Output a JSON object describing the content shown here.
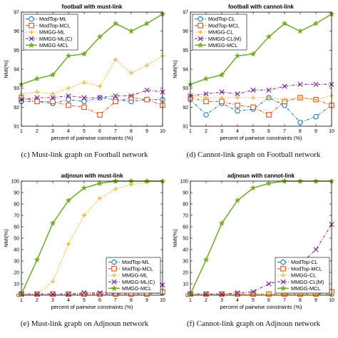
{
  "chart_data": [
    {
      "type": "line",
      "panel_label": "(c)",
      "caption": "Must-link graph on Football network",
      "title": "football with must-link",
      "xlabel": "percent of pairwise constraints (%)",
      "ylabel": "NMI(%)",
      "x": [
        1,
        2,
        3,
        4,
        5,
        6,
        7,
        8,
        9,
        10
      ],
      "xlim": [
        1,
        10
      ],
      "ylim": [
        91,
        97
      ],
      "yticks": [
        91,
        92,
        93,
        94,
        95,
        96,
        97
      ],
      "legend_position": "top-left",
      "series": [
        {
          "name": "ModTop-ML",
          "color": "#1f77b4",
          "marker": "o",
          "dash": "dashdot",
          "values": [
            92.3,
            92.3,
            92.2,
            92.4,
            92.3,
            92.5,
            92.4,
            92.3,
            92.4,
            92.4
          ]
        },
        {
          "name": "ModTop-MCL",
          "color": "#d95319",
          "marker": "s",
          "dash": "dashdot",
          "values": [
            92.5,
            92.3,
            92.3,
            92.1,
            92.0,
            91.6,
            92.3,
            92.5,
            92.4,
            92.1
          ]
        },
        {
          "name": "MMGG-ML",
          "color": "#edb120",
          "marker": "+",
          "dash": "dotted",
          "values": [
            92.7,
            92.8,
            92.7,
            93.0,
            93.3,
            93.1,
            94.5,
            93.8,
            94.2,
            94.7
          ]
        },
        {
          "name": "MMGG-ML(C)",
          "color": "#7e2f8e",
          "marker": "x",
          "dash": "dashdot",
          "values": [
            92.4,
            92.5,
            92.5,
            92.6,
            92.5,
            92.5,
            92.6,
            92.6,
            92.9,
            92.8
          ]
        },
        {
          "name": "MMGG-MCL",
          "color": "#77ac30",
          "marker": "*",
          "dash": "solid",
          "values": [
            93.2,
            93.5,
            93.7,
            94.7,
            94.8,
            95.7,
            96.4,
            96.0,
            96.4,
            96.9
          ]
        }
      ]
    },
    {
      "type": "line",
      "panel_label": "(d)",
      "caption": "Cannot-link graph on Football network",
      "title": "football with cannot-link",
      "xlabel": "percent of pairwise constraints (%)",
      "ylabel": "NMI(%)",
      "x": [
        1,
        2,
        3,
        4,
        5,
        6,
        7,
        8,
        9,
        10
      ],
      "xlim": [
        1,
        10
      ],
      "ylim": [
        91,
        97
      ],
      "yticks": [
        91,
        92,
        93,
        94,
        95,
        96,
        97
      ],
      "legend_position": "top-left",
      "series": [
        {
          "name": "ModTop-CL",
          "color": "#1f77b4",
          "marker": "o",
          "dash": "dashdot",
          "values": [
            92.4,
            91.6,
            92.2,
            91.8,
            91.9,
            92.5,
            92.1,
            91.2,
            91.5,
            92.1
          ]
        },
        {
          "name": "ModTop-MCL",
          "color": "#d95319",
          "marker": "s",
          "dash": "dashdot",
          "values": [
            92.5,
            92.3,
            92.3,
            92.1,
            92.0,
            91.6,
            92.3,
            92.5,
            92.4,
            92.1
          ]
        },
        {
          "name": "MMGG-CL",
          "color": "#edb120",
          "marker": "+",
          "dash": "dotted",
          "values": [
            92.6,
            92.5,
            92.5,
            92.5,
            92.5,
            92.5,
            92.4,
            92.5,
            92.4,
            92.6
          ]
        },
        {
          "name": "MMGG-CL(M)",
          "color": "#7e2f8e",
          "marker": "x",
          "dash": "dashdot",
          "values": [
            92.6,
            92.7,
            92.8,
            92.7,
            92.9,
            92.9,
            93.1,
            93.2,
            93.2,
            93.2
          ]
        },
        {
          "name": "MMGG-MCL",
          "color": "#77ac30",
          "marker": "*",
          "dash": "solid",
          "values": [
            93.2,
            93.5,
            93.7,
            94.7,
            94.8,
            95.7,
            96.4,
            96.0,
            96.4,
            96.9
          ]
        }
      ]
    },
    {
      "type": "line",
      "panel_label": "(e)",
      "caption": "Must-link graph on Adjnoun network",
      "title": "adjnoun with must-link",
      "xlabel": "percent of pairwise constraints (%)",
      "ylabel": "NMI(%)",
      "x": [
        1,
        2,
        3,
        4,
        5,
        6,
        7,
        8,
        9,
        10
      ],
      "xlim": [
        1,
        10
      ],
      "ylim": [
        0,
        100
      ],
      "yticks": [
        0,
        10,
        20,
        30,
        40,
        50,
        60,
        70,
        80,
        90,
        100
      ],
      "legend_position": "bottom-right",
      "series": [
        {
          "name": "ModTop-ML",
          "color": "#1f77b4",
          "marker": "o",
          "dash": "dashdot",
          "values": [
            1,
            1,
            1,
            1,
            1,
            1,
            1,
            1,
            1,
            2
          ]
        },
        {
          "name": "ModTop-MCL",
          "color": "#d95319",
          "marker": "s",
          "dash": "dashdot",
          "values": [
            1,
            1,
            1,
            1,
            1,
            1,
            1,
            1,
            1,
            3
          ]
        },
        {
          "name": "MMGG-ML",
          "color": "#edb120",
          "marker": "+",
          "dash": "dotted",
          "values": [
            1,
            1,
            12,
            45,
            70,
            85,
            93,
            97,
            99,
            100
          ]
        },
        {
          "name": "MMGG-ML(C)",
          "color": "#7e2f8e",
          "marker": "x",
          "dash": "dashdot",
          "values": [
            1,
            1,
            1,
            1,
            2,
            2,
            3,
            4,
            6,
            9
          ]
        },
        {
          "name": "MMGG-MCL",
          "color": "#77ac30",
          "marker": "*",
          "dash": "solid",
          "values": [
            1,
            31,
            63,
            83,
            94,
            98,
            100,
            100,
            100,
            100
          ]
        }
      ]
    },
    {
      "type": "line",
      "panel_label": "(f)",
      "caption": "Cannot-link graph on Adjnoun network",
      "title": "adjnoun with cannot-link",
      "xlabel": "percent of pairwise constraints (%)",
      "ylabel": "NMI(%)",
      "x": [
        1,
        2,
        3,
        4,
        5,
        6,
        7,
        8,
        9,
        10
      ],
      "xlim": [
        1,
        10
      ],
      "ylim": [
        0,
        100
      ],
      "yticks": [
        0,
        10,
        20,
        30,
        40,
        50,
        60,
        70,
        80,
        90,
        100
      ],
      "legend_position": "bottom-right",
      "series": [
        {
          "name": "ModTop-CL",
          "color": "#1f77b4",
          "marker": "o",
          "dash": "dashdot",
          "values": [
            1,
            1,
            1,
            1,
            1,
            1,
            1,
            1,
            1,
            1
          ]
        },
        {
          "name": "ModTop-MCL",
          "color": "#d95319",
          "marker": "s",
          "dash": "dashdot",
          "values": [
            1,
            1,
            1,
            1,
            1,
            1,
            1,
            1,
            1,
            3
          ]
        },
        {
          "name": "MMGG-CL",
          "color": "#edb120",
          "marker": "+",
          "dash": "dotted",
          "values": [
            1,
            1,
            1,
            1,
            1,
            1,
            1,
            1,
            1,
            1
          ]
        },
        {
          "name": "MMGG-CL(M)",
          "color": "#7e2f8e",
          "marker": "x",
          "dash": "dashdot",
          "values": [
            1,
            1,
            1,
            2,
            3,
            10,
            14,
            27,
            40,
            62
          ]
        },
        {
          "name": "MMGG-MCL",
          "color": "#77ac30",
          "marker": "*",
          "dash": "solid",
          "values": [
            1,
            31,
            63,
            83,
            94,
            98,
            100,
            100,
            100,
            100
          ]
        }
      ]
    }
  ]
}
